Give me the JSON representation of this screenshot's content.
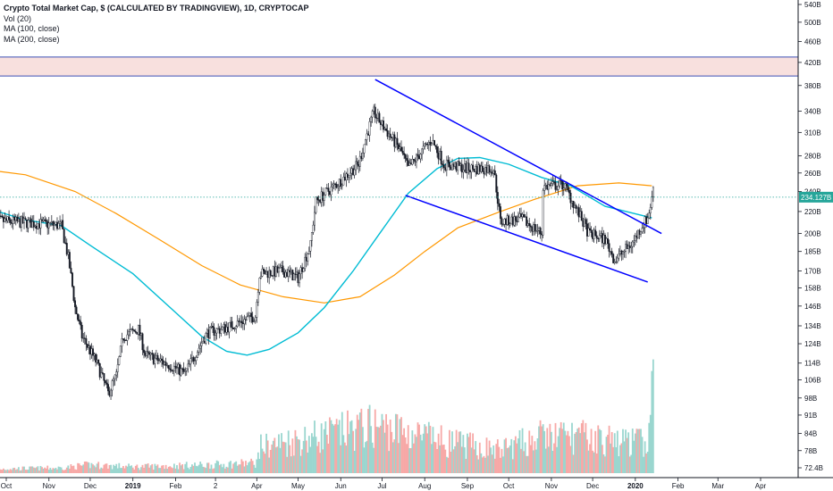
{
  "legend": {
    "title": "Crypto Total Market Cap, $ (CALCULATED BY TRADINGVIEW), 1D, CRYPTOCAP",
    "vol": "Vol (20)",
    "ma100": "MA (100, close)",
    "ma200": "MA (200, close)"
  },
  "chart_data": {
    "type": "candlestick",
    "title": "Crypto Total Market Cap, $ (CALCULATED BY TRADINGVIEW), 1D, CRYPTOCAP",
    "scale": "log",
    "y_tick_labels": [
      "540B",
      "500B",
      "460B",
      "420B",
      "380B",
      "340B",
      "310B",
      "280B",
      "260B",
      "240B",
      "220B",
      "200B",
      "185B",
      "170B",
      "158B",
      "146B",
      "134B",
      "124B",
      "114B",
      "106B",
      "98B",
      "91B",
      "84B",
      "78B",
      "72.4B"
    ],
    "y_tick_values": [
      540,
      500,
      460,
      420,
      380,
      340,
      310,
      280,
      260,
      240,
      220,
      200,
      185,
      170,
      158,
      146,
      134,
      124,
      114,
      106,
      98,
      91,
      84,
      78,
      72.4
    ],
    "last_price_label": "234.127B",
    "last_price": 234.127,
    "x_tick_labels": [
      {
        "label": "Oct",
        "date": "2018-10-01",
        "bold": false
      },
      {
        "label": "Nov",
        "date": "2018-11-01",
        "bold": false
      },
      {
        "label": "Dec",
        "date": "2018-12-01",
        "bold": false
      },
      {
        "label": "2019",
        "date": "2019-01-01",
        "bold": true
      },
      {
        "label": "Feb",
        "date": "2019-02-01",
        "bold": false
      },
      {
        "label": "2",
        "date": "2019-03-02",
        "bold": false
      },
      {
        "label": "Apr",
        "date": "2019-04-01",
        "bold": false
      },
      {
        "label": "May",
        "date": "2019-05-01",
        "bold": false
      },
      {
        "label": "Jun",
        "date": "2019-06-01",
        "bold": false
      },
      {
        "label": "Jul",
        "date": "2019-07-01",
        "bold": false
      },
      {
        "label": "Aug",
        "date": "2019-08-01",
        "bold": false
      },
      {
        "label": "Sep",
        "date": "2019-09-01",
        "bold": false
      },
      {
        "label": "Oct",
        "date": "2019-10-01",
        "bold": false
      },
      {
        "label": "Nov",
        "date": "2019-11-01",
        "bold": false
      },
      {
        "label": "Dec",
        "date": "2019-12-01",
        "bold": false
      },
      {
        "label": "2020",
        "date": "2020-01-01",
        "bold": true
      },
      {
        "label": "Feb",
        "date": "2020-02-01",
        "bold": false
      },
      {
        "label": "Mar",
        "date": "2020-03-01",
        "bold": false
      },
      {
        "label": "Apr",
        "date": "2020-04-01",
        "bold": false
      }
    ],
    "price_path": [
      [
        "2018-09-20",
        212
      ],
      [
        "2018-10-10",
        210
      ],
      [
        "2018-11-01",
        208
      ],
      [
        "2018-11-10",
        207
      ],
      [
        "2018-11-15",
        180
      ],
      [
        "2018-11-20",
        145
      ],
      [
        "2018-11-25",
        128
      ],
      [
        "2018-12-05",
        115
      ],
      [
        "2018-12-14",
        100
      ],
      [
        "2018-12-20",
        108
      ],
      [
        "2018-12-25",
        128
      ],
      [
        "2019-01-05",
        132
      ],
      [
        "2019-01-10",
        118
      ],
      [
        "2019-01-28",
        113
      ],
      [
        "2019-02-08",
        109
      ],
      [
        "2019-02-15",
        118
      ],
      [
        "2019-02-24",
        130
      ],
      [
        "2019-03-10",
        133
      ],
      [
        "2019-03-31",
        140
      ],
      [
        "2019-04-03",
        168
      ],
      [
        "2019-04-20",
        170
      ],
      [
        "2019-05-01",
        165
      ],
      [
        "2019-05-10",
        190
      ],
      [
        "2019-05-14",
        230
      ],
      [
        "2019-05-31",
        250
      ],
      [
        "2019-06-14",
        270
      ],
      [
        "2019-06-25",
        338
      ],
      [
        "2019-07-01",
        320
      ],
      [
        "2019-07-15",
        285
      ],
      [
        "2019-07-20",
        265
      ],
      [
        "2019-08-06",
        300
      ],
      [
        "2019-08-15",
        270
      ],
      [
        "2019-09-01",
        265
      ],
      [
        "2019-09-20",
        265
      ],
      [
        "2019-09-25",
        210
      ],
      [
        "2019-10-10",
        213
      ],
      [
        "2019-10-25",
        200
      ],
      [
        "2019-10-26",
        245
      ],
      [
        "2019-11-10",
        247
      ],
      [
        "2019-11-20",
        220
      ],
      [
        "2019-11-28",
        200
      ],
      [
        "2019-12-10",
        195
      ],
      [
        "2019-12-17",
        178
      ],
      [
        "2019-12-30",
        192
      ],
      [
        "2020-01-06",
        207
      ],
      [
        "2020-01-10",
        214
      ],
      [
        "2020-01-13",
        232
      ],
      [
        "2020-01-14",
        245
      ]
    ],
    "ma100": [
      [
        "2018-09-20",
        222
      ],
      [
        "2018-10-15",
        212
      ],
      [
        "2018-11-10",
        207
      ],
      [
        "2018-12-01",
        190
      ],
      [
        "2019-01-01",
        168
      ],
      [
        "2019-02-01",
        142
      ],
      [
        "2019-02-20",
        128
      ],
      [
        "2019-03-10",
        120
      ],
      [
        "2019-03-25",
        118
      ],
      [
        "2019-04-10",
        121
      ],
      [
        "2019-05-01",
        130
      ],
      [
        "2019-05-20",
        145
      ],
      [
        "2019-06-10",
        170
      ],
      [
        "2019-07-01",
        203
      ],
      [
        "2019-07-20",
        238
      ],
      [
        "2019-08-10",
        265
      ],
      [
        "2019-08-25",
        277
      ],
      [
        "2019-09-10",
        278
      ],
      [
        "2019-10-01",
        270
      ],
      [
        "2019-10-25",
        255
      ],
      [
        "2019-11-15",
        246
      ],
      [
        "2019-12-10",
        225
      ],
      [
        "2020-01-13",
        214
      ]
    ],
    "ma200": [
      [
        "2018-09-20",
        263
      ],
      [
        "2018-10-15",
        258
      ],
      [
        "2018-11-20",
        240
      ],
      [
        "2018-12-20",
        218
      ],
      [
        "2019-01-20",
        195
      ],
      [
        "2019-02-20",
        174
      ],
      [
        "2019-03-20",
        160
      ],
      [
        "2019-04-20",
        152
      ],
      [
        "2019-05-20",
        148
      ],
      [
        "2019-06-15",
        152
      ],
      [
        "2019-07-10",
        167
      ],
      [
        "2019-08-01",
        185
      ],
      [
        "2019-08-25",
        205
      ],
      [
        "2019-09-25",
        220
      ],
      [
        "2019-10-20",
        232
      ],
      [
        "2019-11-20",
        246
      ],
      [
        "2019-12-20",
        249
      ],
      [
        "2020-01-13",
        246
      ]
    ],
    "volume_envelope": [
      [
        "2018-09-20",
        0.04
      ],
      [
        "2018-11-10",
        0.05
      ],
      [
        "2018-12-01",
        0.08
      ],
      [
        "2019-01-01",
        0.06
      ],
      [
        "2019-03-01",
        0.08
      ],
      [
        "2019-04-01",
        0.1
      ],
      [
        "2019-04-03",
        0.25
      ],
      [
        "2019-05-15",
        0.35
      ],
      [
        "2019-06-25",
        0.45
      ],
      [
        "2019-07-15",
        0.4
      ],
      [
        "2019-08-15",
        0.3
      ],
      [
        "2019-09-24",
        0.22
      ],
      [
        "2019-10-26",
        0.35
      ],
      [
        "2019-11-20",
        0.35
      ],
      [
        "2019-12-20",
        0.3
      ],
      [
        "2020-01-10",
        0.3
      ],
      [
        "2020-01-14",
        0.5
      ]
    ],
    "resistance_zone": [
      396,
      430
    ],
    "channel_upper": [
      [
        "2019-06-26",
        390
      ],
      [
        "2020-01-20",
        200
      ]
    ],
    "channel_lower": [
      [
        "2019-07-18",
        236
      ],
      [
        "2020-01-10",
        162
      ]
    ],
    "colors": {
      "up": "#26a69a",
      "down": "#ef5350",
      "ma100": "#00bcd4",
      "ma200": "#ff9800",
      "channel": "#0000ff",
      "zone_fill": "#f5d5d3",
      "zone_border": "#3f51b5",
      "price_line": "#26a69a",
      "vol_up": "#9ad6cf",
      "vol_down": "#f7a9a7"
    },
    "grid": false
  }
}
